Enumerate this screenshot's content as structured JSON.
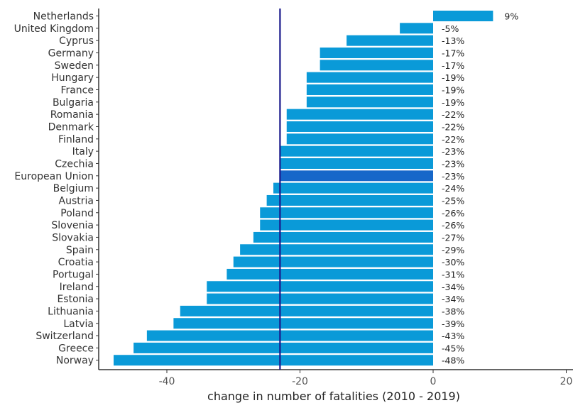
{
  "chart_data": {
    "type": "bar",
    "orientation": "horizontal",
    "categories": [
      "Netherlands",
      "United Kingdom",
      "Cyprus",
      "Germany",
      "Sweden",
      "Hungary",
      "France",
      "Bulgaria",
      "Romania",
      "Denmark",
      "Finland",
      "Italy",
      "Czechia",
      "European Union",
      "Belgium",
      "Austria",
      "Poland",
      "Slovenia",
      "Slovakia",
      "Spain",
      "Croatia",
      "Portugal",
      "Ireland",
      "Estonia",
      "Lithuania",
      "Latvia",
      "Switzerland",
      "Greece",
      "Norway"
    ],
    "values": [
      9,
      -5,
      -13,
      -17,
      -17,
      -19,
      -19,
      -19,
      -22,
      -22,
      -22,
      -23,
      -23,
      -23,
      -24,
      -25,
      -26,
      -26,
      -27,
      -29,
      -30,
      -31,
      -34,
      -34,
      -38,
      -39,
      -43,
      -45,
      -48
    ],
    "value_labels": [
      "9%",
      "-5%",
      "-13%",
      "-17%",
      "-17%",
      "-19%",
      "-19%",
      "-19%",
      "-22%",
      "-22%",
      "-22%",
      "-23%",
      "-23%",
      "-23%",
      "-24%",
      "-25%",
      "-26%",
      "-26%",
      "-27%",
      "-29%",
      "-30%",
      "-31%",
      "-34%",
      "-34%",
      "-38%",
      "-39%",
      "-43%",
      "-45%",
      "-48%"
    ],
    "highlight": "European Union",
    "reference_line": -23,
    "xlabel": "change in number of fatalities (2010 - 2019)",
    "xticks": [
      -40,
      -20,
      0,
      20
    ],
    "xtick_labels": [
      "-40",
      "-20",
      "0",
      "20"
    ],
    "xlim": [
      -49,
      20
    ],
    "grid": false,
    "colors": {
      "bar": "#0a9ad8",
      "highlight": "#1667c9",
      "reference_line": "#1a1a8c",
      "axis": "#333333"
    }
  }
}
